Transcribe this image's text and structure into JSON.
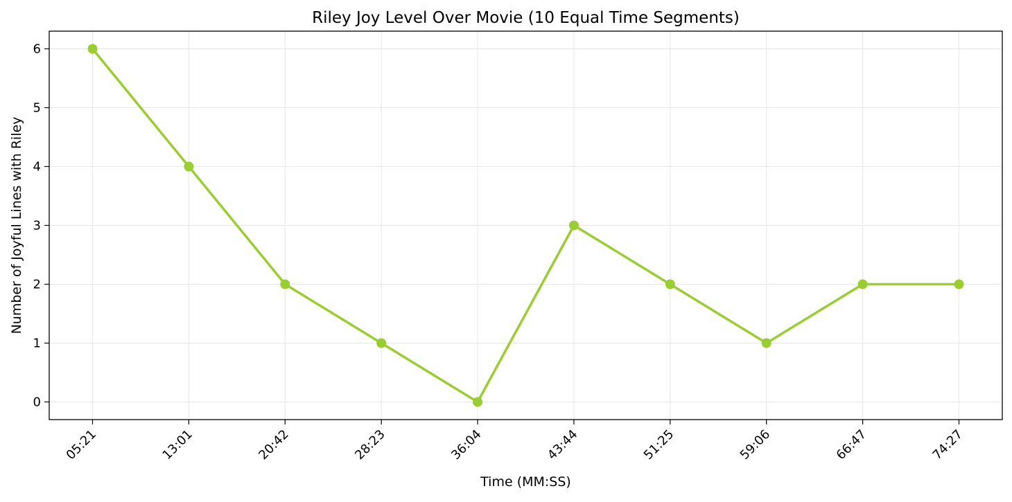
{
  "chart_data": {
    "type": "line",
    "title": "Riley Joy Level Over Movie (10 Equal Time Segments)",
    "xlabel": "Time (MM:SS)",
    "ylabel": "Number of Joyful Lines with Riley",
    "categories": [
      "05:21",
      "13:01",
      "20:42",
      "28:23",
      "36:04",
      "43:44",
      "51:25",
      "59:06",
      "66:47",
      "74:27"
    ],
    "series": [
      {
        "values": [
          6,
          4,
          2,
          1,
          0,
          3,
          2,
          1,
          2,
          2
        ],
        "color": "#9acd32",
        "marker": "circle"
      }
    ],
    "ylim": [
      -0.3,
      6.3
    ],
    "yticks": [
      "0",
      "1",
      "2",
      "3",
      "4",
      "5",
      "6"
    ],
    "grid": true,
    "legend": "none"
  }
}
